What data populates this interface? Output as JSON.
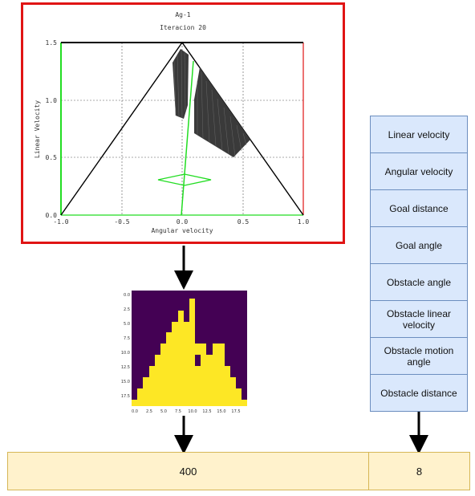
{
  "plot": {
    "title": "Ag-1",
    "subtitle": "Iteracion 20",
    "xlabel": "Angular velocity",
    "ylabel": "Linear Velocity",
    "xticks": [
      "-1.0",
      "-0.5",
      "0.0",
      "0.5",
      "1.0"
    ],
    "yticks": [
      "0.0",
      "0.5",
      "1.0",
      "1.5"
    ],
    "colors": {
      "frame": "#e01414",
      "line": "#22dd22",
      "wall": "#333333"
    }
  },
  "heatmap": {
    "xticks": [
      "0.0",
      "2.5",
      "5.0",
      "7.5",
      "10.0",
      "12.5",
      "15.0",
      "17.5"
    ],
    "yticks": [
      "0.0",
      "2.5",
      "5.0",
      "7.5",
      "10.0",
      "12.5",
      "15.0",
      "17.5"
    ],
    "colors": {
      "background": "#440154",
      "fill": "#fde725"
    }
  },
  "features": [
    "Linear velocity",
    "Angular velocity",
    "Goal distance",
    "Goal angle",
    "Obstacle angle",
    "Obstacle linear velocity",
    "Obstacle motion angle",
    "Obstacle distance"
  ],
  "bottom": {
    "left_value": "400",
    "right_value": "8"
  }
}
